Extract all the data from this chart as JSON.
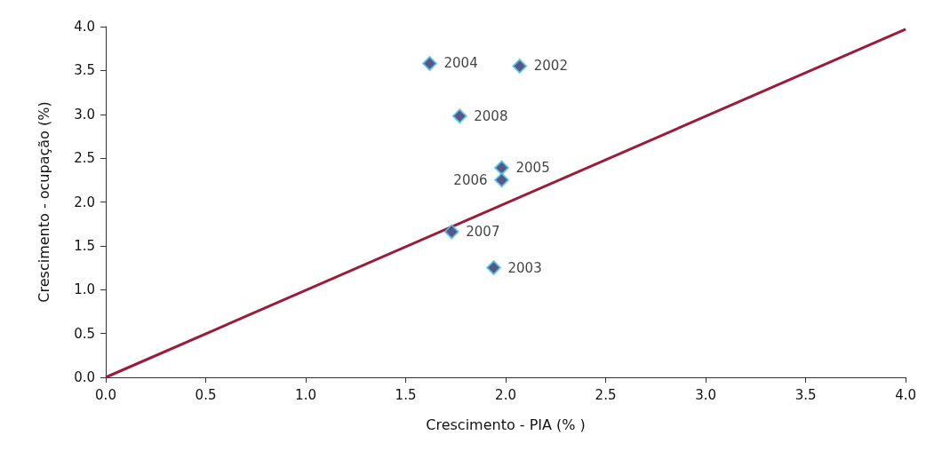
{
  "chart_data": {
    "type": "scatter",
    "xlabel": "Crescimento - PIA (% )",
    "ylabel": "Crescimento - ocupação (%)",
    "xlim": [
      0,
      4
    ],
    "ylim": [
      0,
      4
    ],
    "xticks": [
      {
        "value": 0,
        "label": "0.0"
      },
      {
        "value": 0.5,
        "label": "0.5"
      },
      {
        "value": 1,
        "label": "1.0"
      },
      {
        "value": 1.5,
        "label": "1.5"
      },
      {
        "value": 2,
        "label": "2.0"
      },
      {
        "value": 2.5,
        "label": "2.5"
      },
      {
        "value": 3,
        "label": "3.0"
      },
      {
        "value": 3.5,
        "label": "3.5"
      },
      {
        "value": 4,
        "label": "4.0"
      }
    ],
    "yticks": [
      {
        "value": 0,
        "label": "0.0"
      },
      {
        "value": 0.5,
        "label": "0.5"
      },
      {
        "value": 1,
        "label": "1.0"
      },
      {
        "value": 1.5,
        "label": "1.5"
      },
      {
        "value": 2,
        "label": "2.0"
      },
      {
        "value": 2.5,
        "label": "2.5"
      },
      {
        "value": 3,
        "label": "3.0"
      },
      {
        "value": 3.5,
        "label": "3.5"
      },
      {
        "value": 4,
        "label": "4.0"
      }
    ],
    "annotations": [
      {
        "text": "2004",
        "x": 1.62,
        "y": 3.58
      },
      {
        "text": "2002",
        "x": 2.07,
        "y": 3.55
      },
      {
        "text": "2008",
        "x": 1.77,
        "y": 2.98
      },
      {
        "text": "2005",
        "x": 1.98,
        "y": 2.39
      },
      {
        "text": "2006",
        "x": 1.98,
        "y": 2.25
      },
      {
        "text": "2007",
        "x": 1.73,
        "y": 1.66
      },
      {
        "text": "2003",
        "x": 1.94,
        "y": 1.25
      }
    ],
    "grid": false,
    "marker": "diamond",
    "series": [
      {
        "color": "#2b2d6e",
        "x": [
          1.62,
          2.07,
          1.77,
          1.98,
          1.98,
          1.73,
          1.94
        ],
        "values": [
          3.58,
          3.55,
          2.98,
          2.39,
          2.25,
          1.66,
          1.25
        ]
      },
      {
        "type": "line",
        "color": "#9b1b3a",
        "x": [
          0,
          4
        ],
        "values": [
          0,
          3.97
        ],
        "marker": "none",
        "line_style": "solid"
      }
    ]
  }
}
